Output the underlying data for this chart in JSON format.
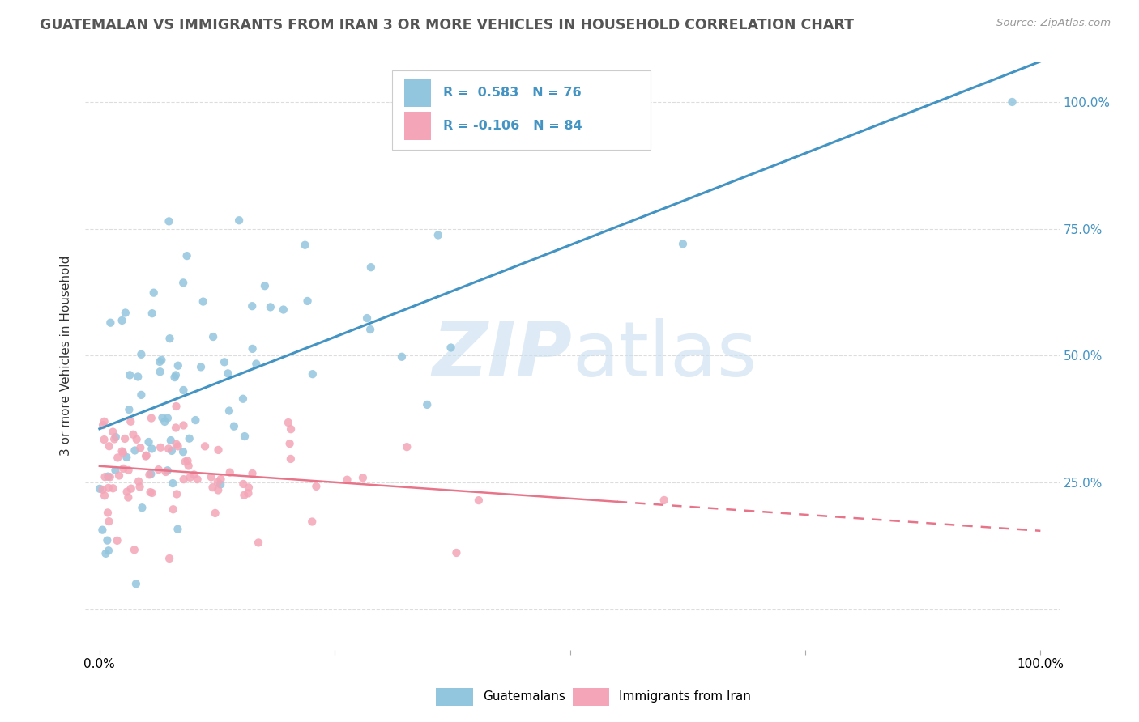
{
  "title": "GUATEMALAN VS IMMIGRANTS FROM IRAN 3 OR MORE VEHICLES IN HOUSEHOLD CORRELATION CHART",
  "source": "Source: ZipAtlas.com",
  "ylabel": "3 or more Vehicles in Household",
  "legend_label1": "Guatemalans",
  "legend_label2": "Immigrants from Iran",
  "R1": 0.583,
  "N1": 76,
  "R2": -0.106,
  "N2": 84,
  "color_blue": "#92c5de",
  "color_pink": "#f4a6b8",
  "color_blue_line": "#4393c3",
  "color_pink_line": "#e8748a",
  "watermark_color": "#c8dff0",
  "grid_color": "#dddddd",
  "title_color": "#555555",
  "source_color": "#999999",
  "tick_color": "#4393c3"
}
